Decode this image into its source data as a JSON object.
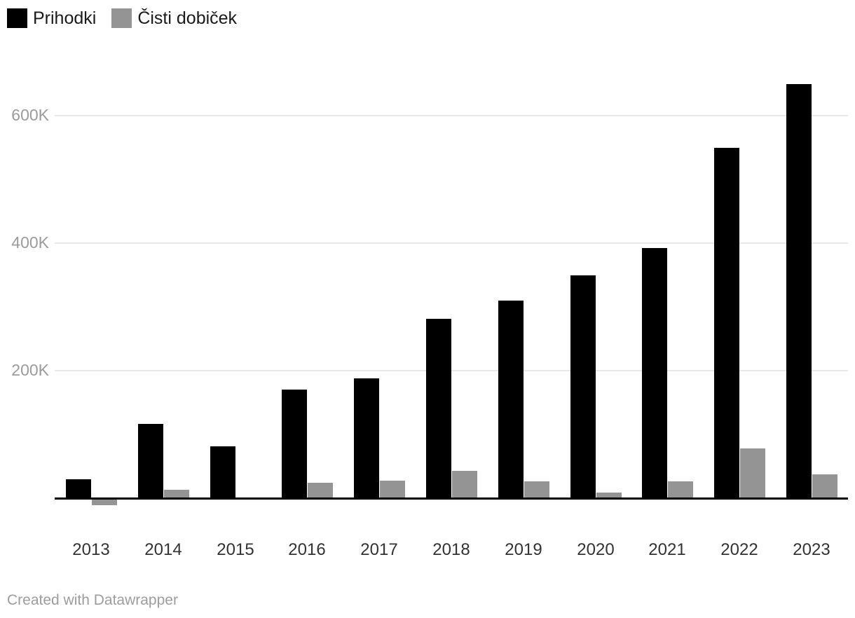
{
  "legend": {
    "items": [
      {
        "label": "Prihodki",
        "color": "#000000"
      },
      {
        "label": "Čisti dobiček",
        "color": "#949494"
      }
    ]
  },
  "footer": {
    "credit": "Created with Datawrapper"
  },
  "chart_data": {
    "type": "bar",
    "title": "",
    "xlabel": "",
    "ylabel": "",
    "unit": "K",
    "categories": [
      "2013",
      "2014",
      "2015",
      "2016",
      "2017",
      "2018",
      "2019",
      "2020",
      "2021",
      "2022",
      "2023"
    ],
    "series": [
      {
        "name": "Prihodki",
        "color": "#000000",
        "values": [
          30,
          116,
          81,
          170,
          188,
          281,
          310,
          349,
          392,
          550,
          649
        ]
      },
      {
        "name": "Čisti dobiček",
        "color": "#949494",
        "values": [
          -9,
          13,
          0,
          24,
          28,
          43,
          26,
          9,
          26,
          78,
          37
        ]
      }
    ],
    "y_ticks": [
      {
        "value": 200,
        "label": "200K"
      },
      {
        "value": 400,
        "label": "400K"
      },
      {
        "value": 600,
        "label": "600K"
      }
    ],
    "ylim": [
      -20,
      660
    ],
    "grid": "horizontal",
    "legend_position": "top-left"
  }
}
